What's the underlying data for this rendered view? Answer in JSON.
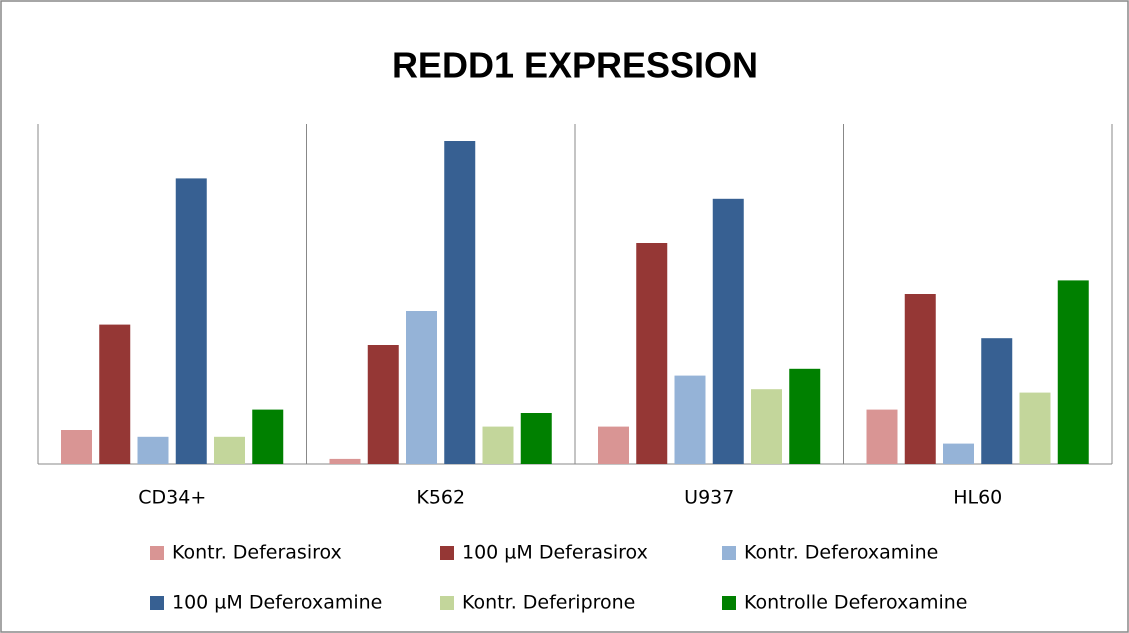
{
  "chart_data": {
    "type": "bar",
    "title": "REDD1 EXPRESSION",
    "categories": [
      "CD34+",
      "K562",
      "U937",
      "HL60"
    ],
    "series": [
      {
        "name": "Kontr. Deferasirox",
        "color": "#d99594",
        "values": [
          10,
          1.5,
          11,
          16
        ]
      },
      {
        "name": "100 µM Deferasirox",
        "color": "#953735",
        "values": [
          41,
          35,
          65,
          50
        ]
      },
      {
        "name": "Kontr. Deferoxamine",
        "color": "#95b3d7",
        "values": [
          8,
          45,
          26,
          6
        ]
      },
      {
        "name": "100 µM Deferoxamine",
        "color": "#376092",
        "values": [
          84,
          95,
          78,
          37
        ]
      },
      {
        "name": "Kontr. Deferiprone",
        "color": "#c3d69b",
        "values": [
          8,
          11,
          22,
          21
        ]
      },
      {
        "name": "Kontrolle Deferoxamine",
        "color": "#008000",
        "values": [
          16,
          15,
          28,
          54
        ]
      }
    ],
    "ylim": [
      0,
      100
    ]
  }
}
